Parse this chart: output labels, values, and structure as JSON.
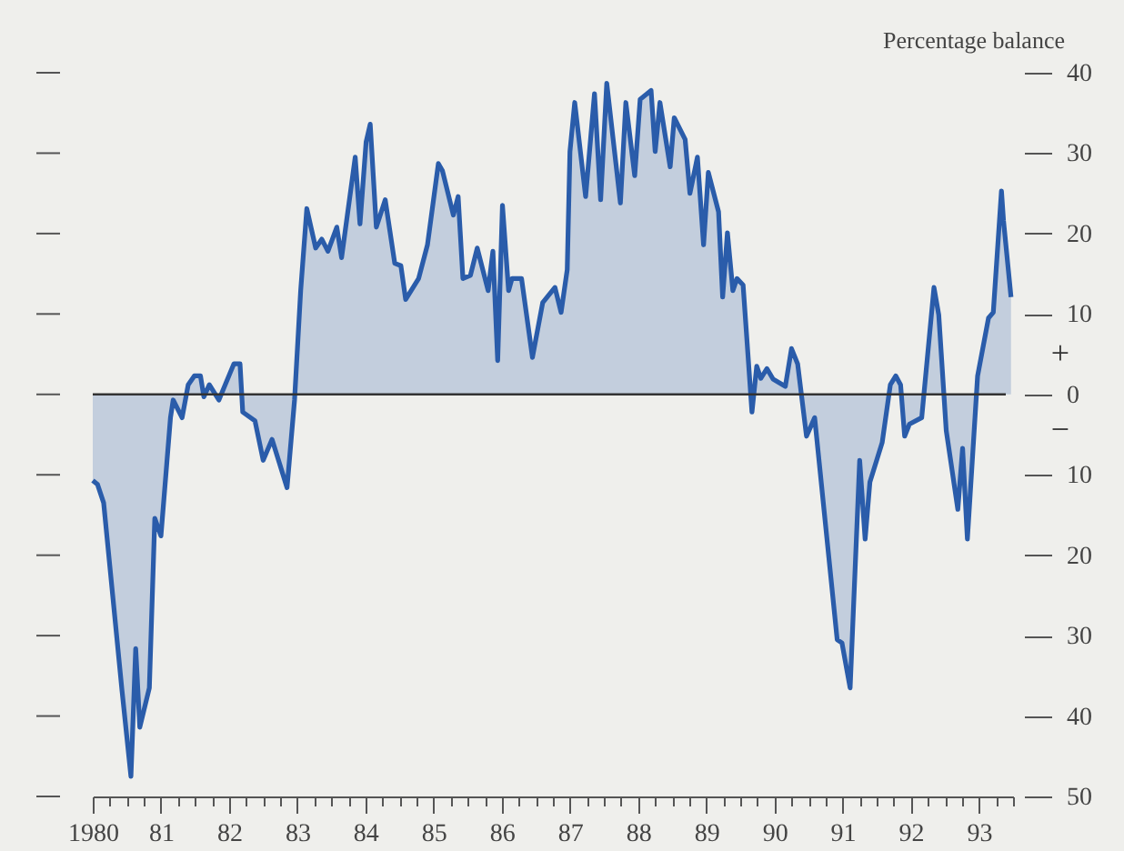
{
  "chart_data": {
    "type": "area",
    "ylabel": "Percentage balance",
    "annotations": [
      "+",
      "−"
    ],
    "xlim": [
      1980,
      1993.5
    ],
    "xticks": [
      {
        "value": 1980,
        "label": "1980"
      },
      {
        "value": 1980.25,
        "label": null
      },
      {
        "value": 1980.5,
        "label": null
      },
      {
        "value": 1980.75,
        "label": null
      },
      {
        "value": 1981,
        "label": "81"
      },
      {
        "value": 1981.25,
        "label": null
      },
      {
        "value": 1981.5,
        "label": null
      },
      {
        "value": 1981.75,
        "label": null
      },
      {
        "value": 1982,
        "label": "82"
      },
      {
        "value": 1982.25,
        "label": null
      },
      {
        "value": 1982.5,
        "label": null
      },
      {
        "value": 1982.75,
        "label": null
      },
      {
        "value": 1983,
        "label": "83"
      },
      {
        "value": 1983.25,
        "label": null
      },
      {
        "value": 1983.5,
        "label": null
      },
      {
        "value": 1983.75,
        "label": null
      },
      {
        "value": 1984,
        "label": "84"
      },
      {
        "value": 1984.25,
        "label": null
      },
      {
        "value": 1984.5,
        "label": null
      },
      {
        "value": 1984.75,
        "label": null
      },
      {
        "value": 1985,
        "label": "85"
      },
      {
        "value": 1985.25,
        "label": null
      },
      {
        "value": 1985.5,
        "label": null
      },
      {
        "value": 1985.75,
        "label": null
      },
      {
        "value": 1986,
        "label": "86"
      },
      {
        "value": 1986.25,
        "label": null
      },
      {
        "value": 1986.5,
        "label": null
      },
      {
        "value": 1986.75,
        "label": null
      },
      {
        "value": 1987,
        "label": "87"
      },
      {
        "value": 1987.25,
        "label": null
      },
      {
        "value": 1987.5,
        "label": null
      },
      {
        "value": 1987.75,
        "label": null
      },
      {
        "value": 1988,
        "label": "88"
      },
      {
        "value": 1988.25,
        "label": null
      },
      {
        "value": 1988.5,
        "label": null
      },
      {
        "value": 1988.75,
        "label": null
      },
      {
        "value": 1989,
        "label": "89"
      },
      {
        "value": 1989.25,
        "label": null
      },
      {
        "value": 1989.5,
        "label": null
      },
      {
        "value": 1989.75,
        "label": null
      },
      {
        "value": 1990,
        "label": "90"
      },
      {
        "value": 1990.25,
        "label": null
      },
      {
        "value": 1990.5,
        "label": null
      },
      {
        "value": 1990.75,
        "label": null
      },
      {
        "value": 1991,
        "label": "91"
      },
      {
        "value": 1991.25,
        "label": null
      },
      {
        "value": 1991.5,
        "label": null
      },
      {
        "value": 1991.75,
        "label": null
      },
      {
        "value": 1992,
        "label": "92"
      },
      {
        "value": 1992.25,
        "label": null
      },
      {
        "value": 1992.5,
        "label": null
      },
      {
        "value": 1992.75,
        "label": null
      },
      {
        "value": 1993,
        "label": "93"
      },
      {
        "value": 1993.25,
        "label": null
      },
      {
        "value": 1993.5,
        "label": null
      }
    ],
    "ylim": [
      -50,
      40
    ],
    "yticks": [
      {
        "value": -50,
        "label": "50"
      },
      {
        "value": -40,
        "label": "40"
      },
      {
        "value": -30,
        "label": "30"
      },
      {
        "value": -20,
        "label": "20"
      },
      {
        "value": -10,
        "label": "10"
      },
      0,
      10,
      20,
      30,
      40
    ],
    "grid": false,
    "ref_lines": [
      {
        "axis": "y",
        "value": 0,
        "color": "#333333"
      }
    ],
    "series": [
      {
        "color": "#2a5caa",
        "x": [
          1980.0,
          1980.07,
          1980.16,
          1980.29,
          1980.43,
          1980.56,
          1980.63,
          1980.69,
          1980.83,
          1980.91,
          1981.0,
          1981.14,
          1981.18,
          1981.31,
          1981.4,
          1981.49,
          1981.58,
          1981.63,
          1981.71,
          1981.85,
          1982.07,
          1982.16,
          1982.2,
          1982.38,
          1982.5,
          1982.63,
          1982.85,
          1982.96,
          1983.05,
          1983.14,
          1983.27,
          1983.36,
          1983.45,
          1983.58,
          1983.65,
          1983.85,
          1983.92,
          1984.01,
          1984.07,
          1984.16,
          1984.29,
          1984.43,
          1984.52,
          1984.59,
          1984.78,
          1984.91,
          1985.07,
          1985.13,
          1985.29,
          1985.36,
          1985.43,
          1985.54,
          1985.64,
          1985.8,
          1985.87,
          1985.94,
          1986.01,
          1986.1,
          1986.15,
          1986.29,
          1986.45,
          1986.6,
          1986.78,
          1986.87,
          1986.96,
          1987.0,
          1987.07,
          1987.23,
          1987.36,
          1987.45,
          1987.54,
          1987.74,
          1987.82,
          1987.95,
          1988.03,
          1988.19,
          1988.25,
          1988.32,
          1988.47,
          1988.53,
          1988.69,
          1988.76,
          1988.87,
          1988.96,
          1989.03,
          1989.18,
          1989.24,
          1989.31,
          1989.39,
          1989.45,
          1989.54,
          1989.67,
          1989.74,
          1989.8,
          1989.89,
          1989.98,
          1990.16,
          1990.25,
          1990.34,
          1990.47,
          1990.59,
          1990.92,
          1990.99,
          1991.11,
          1991.25,
          1991.33,
          1991.4,
          1991.58,
          1991.7,
          1991.78,
          1991.85,
          1991.91,
          1991.98,
          1992.16,
          1992.34,
          1992.41,
          1992.52,
          1992.69,
          1992.76,
          1992.83,
          1992.98,
          1993.14,
          1993.21,
          1993.33,
          1993.36,
          1993.47
        ],
        "values": [
          -10.7,
          -11.2,
          -13.5,
          -24.8,
          -36.9,
          -47.5,
          -31.6,
          -41.4,
          -36.5,
          -15.4,
          -17.6,
          -2.9,
          -0.7,
          -2.9,
          1.2,
          2.3,
          2.3,
          -0.3,
          1.2,
          -0.7,
          3.8,
          3.8,
          -2.2,
          -3.3,
          -8.2,
          -5.6,
          -11.6,
          -0.7,
          12.9,
          23.1,
          18.2,
          19.3,
          17.8,
          20.8,
          17.0,
          29.5,
          21.2,
          31.4,
          33.6,
          20.8,
          24.2,
          16.3,
          16.0,
          11.8,
          14.4,
          18.6,
          28.7,
          27.8,
          22.3,
          24.6,
          14.4,
          14.8,
          18.2,
          12.9,
          17.8,
          4.2,
          23.5,
          12.9,
          14.4,
          14.4,
          4.6,
          11.4,
          13.3,
          10.2,
          15.5,
          30.2,
          36.3,
          24.6,
          37.4,
          24.2,
          38.7,
          23.8,
          36.3,
          27.2,
          36.7,
          37.8,
          30.2,
          36.3,
          28.3,
          34.4,
          31.7,
          25.0,
          29.5,
          18.6,
          27.6,
          22.7,
          12.1,
          20.1,
          12.9,
          14.4,
          13.6,
          -2.2,
          3.5,
          2.0,
          3.2,
          1.9,
          1.0,
          5.7,
          3.8,
          -5.2,
          -2.9,
          -30.5,
          -30.9,
          -36.5,
          -8.2,
          -18.0,
          -10.9,
          -6.0,
          1.2,
          2.3,
          1.2,
          -5.2,
          -3.7,
          -2.9,
          13.3,
          9.9,
          -4.5,
          -14.3,
          -6.7,
          -18.0,
          2.3,
          9.5,
          10.2,
          25.3,
          21.6,
          12.1
        ]
      }
    ]
  }
}
